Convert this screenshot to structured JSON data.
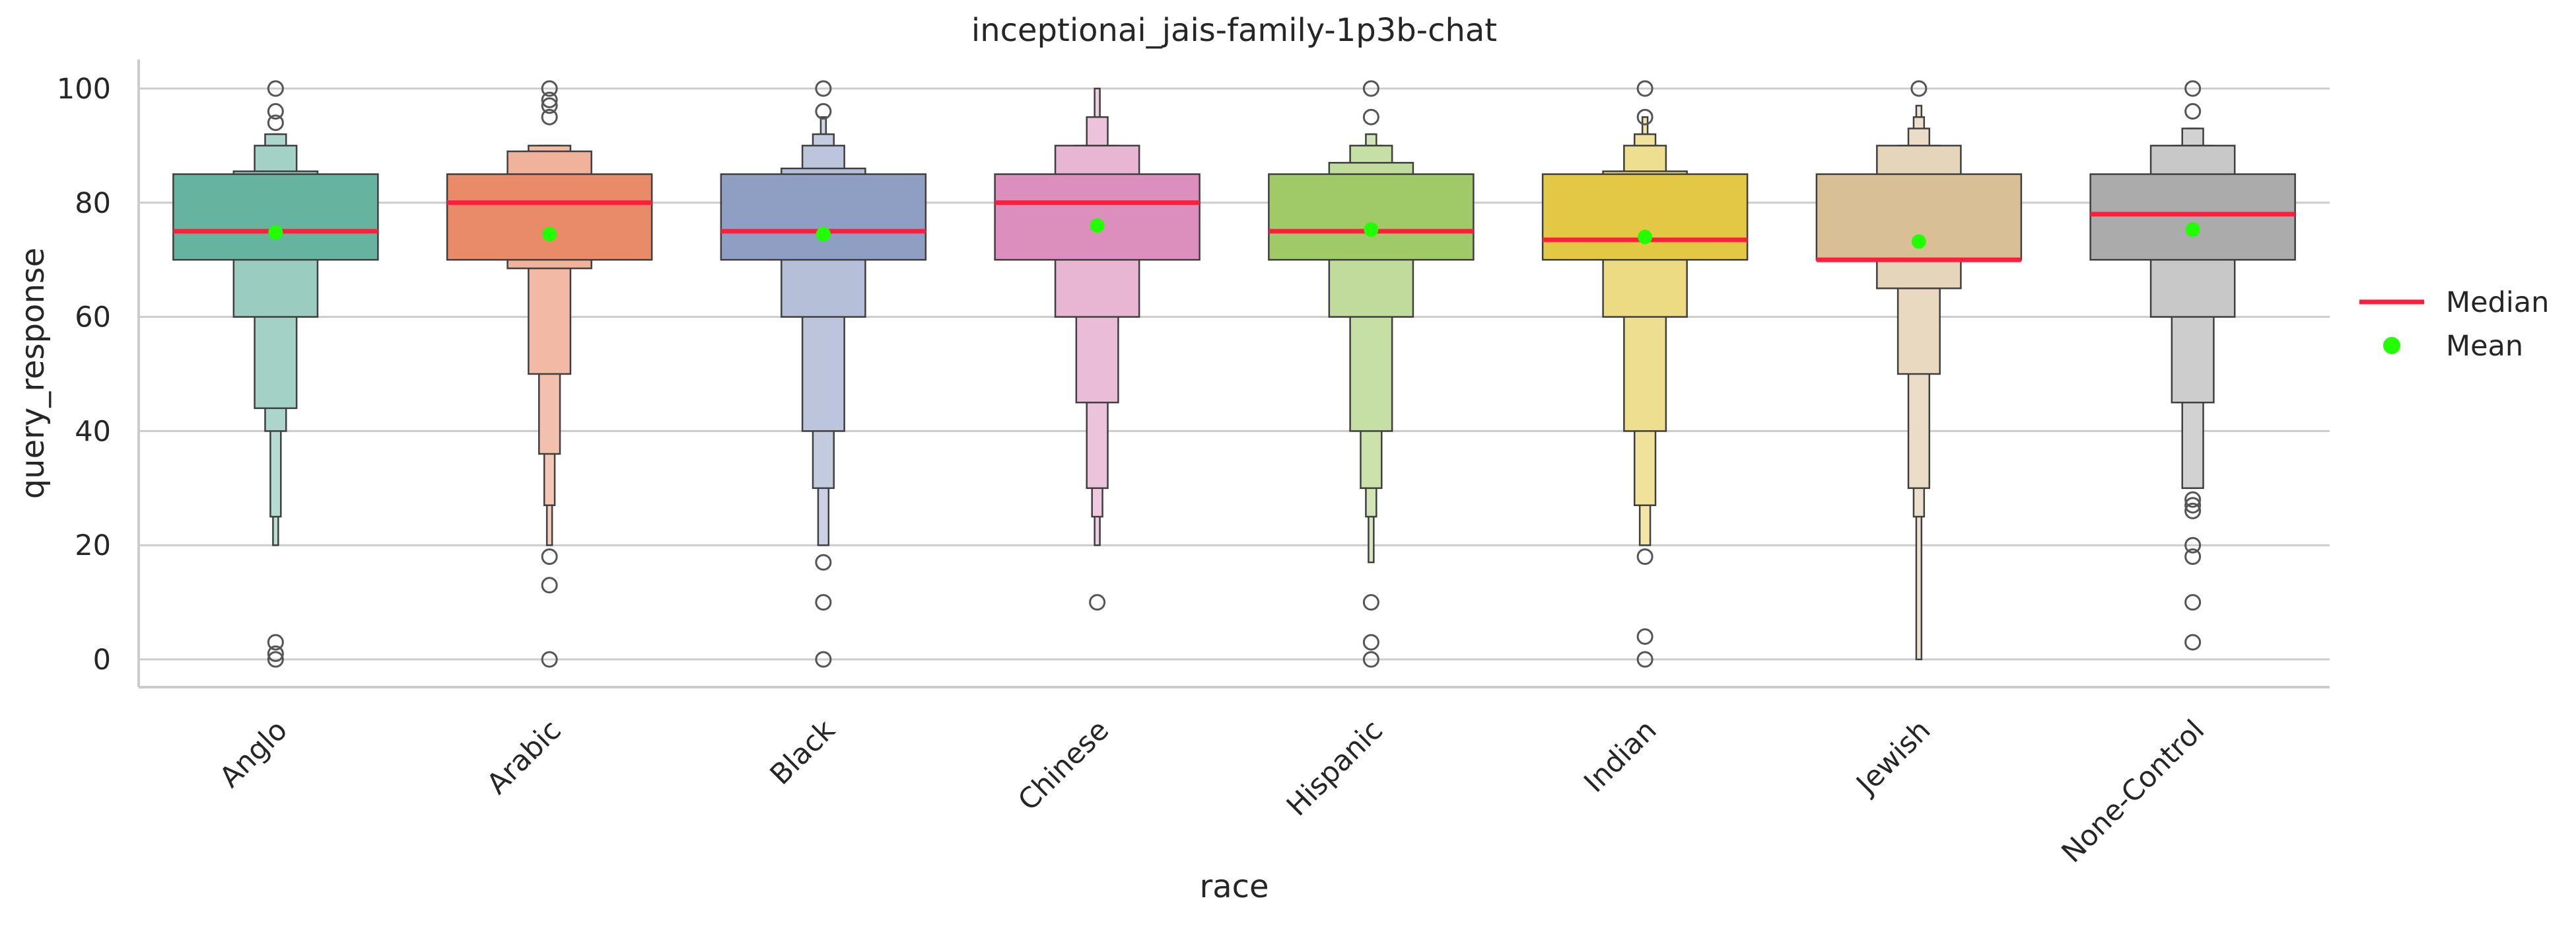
{
  "chart_data": {
    "type": "boxen",
    "title": "inceptionai_jais-family-1p3b-chat",
    "xlabel": "race",
    "ylabel": "query_response",
    "ylim": [
      -5,
      105
    ],
    "yticks": [
      0,
      20,
      40,
      60,
      80,
      100
    ],
    "grid": "horizontal",
    "legend_position": "right",
    "legend": [
      {
        "label": "Median",
        "marker": "line",
        "color": "#ff1f3d"
      },
      {
        "label": "Mean",
        "marker": "dot",
        "color": "#22ff00"
      }
    ],
    "median_color": "#ff1f3d",
    "mean_color": "#22ff00",
    "categories": [
      "Anglo",
      "Arabic",
      "Black",
      "Chinese",
      "Hispanic",
      "Indian",
      "Jewish",
      "None-Control"
    ],
    "series": [
      {
        "category": "Anglo",
        "color": "#66b3a0",
        "median": 75,
        "mean": 74.8,
        "boxes": [
          [
            70,
            85
          ],
          [
            60,
            85.5
          ],
          [
            44,
            90
          ],
          [
            40,
            92
          ],
          [
            25,
            92
          ],
          [
            20,
            92
          ]
        ],
        "outliers": [
          100,
          96,
          94,
          3,
          1,
          0
        ]
      },
      {
        "category": "Arabic",
        "color": "#e98b68",
        "median": 80,
        "mean": 74.5,
        "boxes": [
          [
            70,
            85
          ],
          [
            68.5,
            89
          ],
          [
            50,
            90
          ],
          [
            36,
            90
          ],
          [
            27,
            90
          ],
          [
            20,
            90
          ]
        ],
        "outliers": [
          100,
          98,
          97,
          95,
          18,
          13,
          0
        ]
      },
      {
        "category": "Black",
        "color": "#8f9fc4",
        "median": 75,
        "mean": 74.5,
        "boxes": [
          [
            70,
            85
          ],
          [
            60,
            86
          ],
          [
            40,
            90
          ],
          [
            30,
            92
          ],
          [
            20,
            92
          ],
          [
            20,
            95
          ]
        ],
        "outliers": [
          100,
          96,
          17,
          10,
          0
        ]
      },
      {
        "category": "Chinese",
        "color": "#dc8fbd",
        "median": 80,
        "mean": 76,
        "boxes": [
          [
            70,
            85
          ],
          [
            60,
            90
          ],
          [
            45,
            90
          ],
          [
            30,
            95
          ],
          [
            25,
            95
          ],
          [
            20,
            100
          ]
        ],
        "outliers": [
          10
        ]
      },
      {
        "category": "Hispanic",
        "color": "#a0c968",
        "median": 75,
        "mean": 75.3,
        "boxes": [
          [
            70,
            85
          ],
          [
            60,
            87
          ],
          [
            40,
            90
          ],
          [
            30,
            90
          ],
          [
            25,
            92
          ],
          [
            17,
            92
          ]
        ],
        "outliers": [
          100,
          95,
          10,
          3,
          0
        ]
      },
      {
        "category": "Indian",
        "color": "#e3c845",
        "median": 73.5,
        "mean": 74,
        "boxes": [
          [
            70,
            85
          ],
          [
            60,
            85.5
          ],
          [
            40,
            90
          ],
          [
            27,
            92
          ],
          [
            20,
            92
          ],
          [
            20,
            95
          ]
        ],
        "outliers": [
          100,
          95,
          18,
          4,
          0
        ]
      },
      {
        "category": "Jewish",
        "color": "#d8bf96",
        "median": 70,
        "mean": 73.2,
        "boxes": [
          [
            70,
            85
          ],
          [
            65,
            90
          ],
          [
            50,
            90
          ],
          [
            30,
            93
          ],
          [
            25,
            95
          ],
          [
            0,
            97
          ]
        ],
        "outliers": [
          100
        ]
      },
      {
        "category": "None-Control",
        "color": "#ababab",
        "median": 78,
        "mean": 75.3,
        "boxes": [
          [
            70,
            85
          ],
          [
            60,
            90
          ],
          [
            45,
            90
          ],
          [
            30,
            93
          ],
          [
            30,
            93
          ]
        ],
        "outliers": [
          100,
          96,
          28,
          27,
          26,
          20,
          18,
          10,
          3
        ]
      }
    ]
  }
}
